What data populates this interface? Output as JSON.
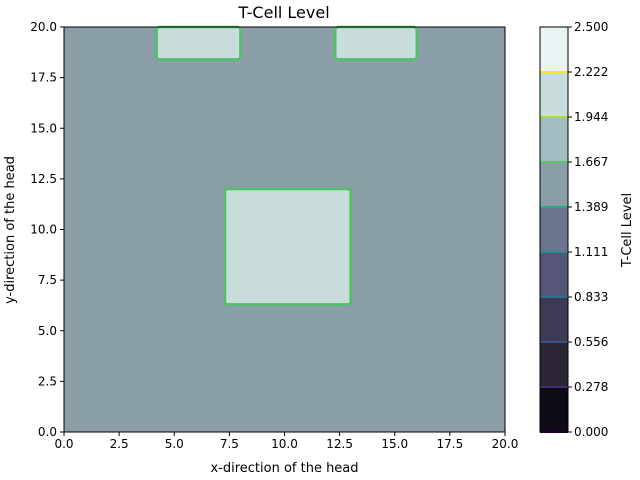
{
  "chart_data": {
    "type": "heatmap",
    "title": "T-Cell Level",
    "xlabel": "x-direction of the head",
    "ylabel": "y-direction of the head",
    "xlim": [
      0,
      20
    ],
    "ylim": [
      0,
      20
    ],
    "xticks": [
      "0.0",
      "2.5",
      "5.0",
      "7.5",
      "10.0",
      "12.5",
      "15.0",
      "17.5",
      "20.0"
    ],
    "yticks": [
      "0.0",
      "2.5",
      "5.0",
      "7.5",
      "10.0",
      "12.5",
      "15.0",
      "17.5",
      "20.0"
    ],
    "background_value": 1.5,
    "background_color": "#8a9ea7",
    "regions": [
      {
        "x": [
          4.2,
          8.0
        ],
        "y": [
          18.4,
          20.0
        ],
        "value": 2.0,
        "color": "#c8dcdc",
        "edge_color": "#4cc263"
      },
      {
        "x": [
          12.3,
          16.0
        ],
        "y": [
          18.4,
          20.0
        ],
        "value": 2.0,
        "color": "#c8dcdc",
        "edge_color": "#4cc263"
      },
      {
        "x": [
          7.3,
          13.0
        ],
        "y": [
          6.3,
          12.0
        ],
        "value": 2.0,
        "color": "#c8dcdc",
        "edge_color": "#4cc263"
      }
    ],
    "colorbar": {
      "label": "T-Cell Level",
      "min": 0,
      "max": 2.5,
      "ticks": [
        "0.000",
        "0.278",
        "0.556",
        "0.833",
        "1.111",
        "1.389",
        "1.667",
        "1.944",
        "2.222",
        "2.500"
      ],
      "band_colors": [
        "#0e0b16",
        "#2a2434",
        "#3d3a56",
        "#555578",
        "#6c7590",
        "#8a9ea7",
        "#a1bdc0",
        "#c8dcdc",
        "#eaf3f3"
      ],
      "line_colors": [
        "#440154",
        "#472c7a",
        "#3b518b",
        "#2c718e",
        "#21908d",
        "#27ad81",
        "#5cc863",
        "#aadc32",
        "#fde725"
      ]
    }
  }
}
